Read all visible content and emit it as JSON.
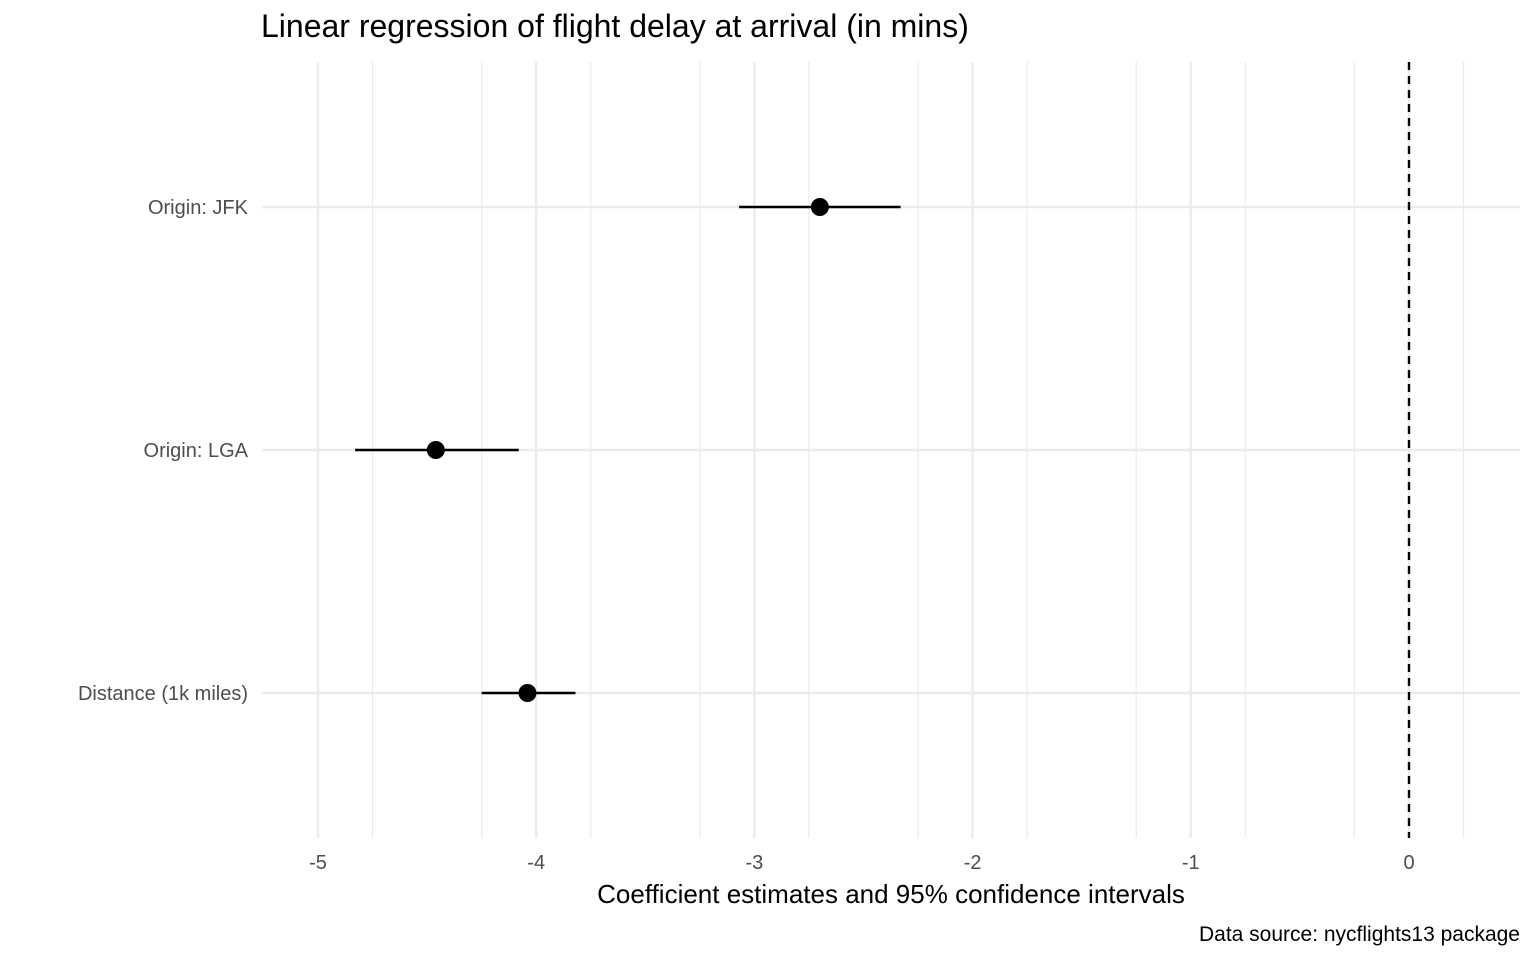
{
  "chart_data": {
    "type": "scatter",
    "subtype": "coefficient-plot",
    "title": "Linear regression of flight delay at arrival (in mins)",
    "xlabel": "Coefficient estimates and 95% confidence intervals",
    "ylabel": "",
    "caption": "Data source: nycflights13 package",
    "xlim": [
      -5.25,
      0.5
    ],
    "x_ticks": [
      -5,
      -4,
      -3,
      -2,
      -1,
      0
    ],
    "x_tick_labels": [
      "-5",
      "-4",
      "-3",
      "-2",
      "-1",
      "0"
    ],
    "reference_line": 0,
    "grid": true,
    "categories": [
      "Origin: JFK",
      "Origin: LGA",
      "Distance (1k miles)"
    ],
    "series": [
      {
        "estimates": [
          -2.7,
          -4.46,
          -4.04
        ],
        "ci_low": [
          -3.07,
          -4.83,
          -4.25
        ],
        "ci_high": [
          -2.33,
          -4.08,
          -3.82
        ]
      }
    ],
    "colors": {
      "point": "#000000",
      "major_grid": "#ebebeb",
      "minor_grid": "#ebebeb",
      "reference_line": "#000000",
      "tick_text": "#4d4d4d"
    }
  }
}
